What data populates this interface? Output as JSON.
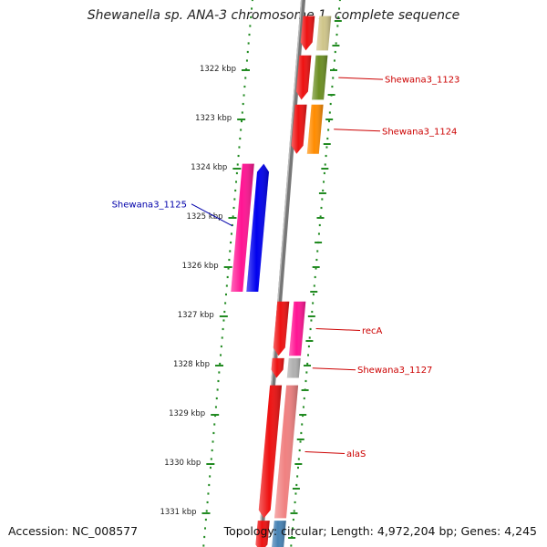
{
  "title": "Shewanella sp. ANA-3 chromosome 1, complete sequence",
  "footer": {
    "accession": "Accession: NC_008577",
    "summary": "Topology: circular; Length: 4,972,204 bp; Genes: 4,245"
  },
  "colors": {
    "tick": "#228B22",
    "backbone": "#777777",
    "label_forward": "#CC0000",
    "label_reverse": "#0000AA"
  },
  "scale": {
    "unit": "kbp",
    "ticks": [
      {
        "kbp": 1322,
        "label": "1322 kbp"
      },
      {
        "kbp": 1323,
        "label": "1323 kbp"
      },
      {
        "kbp": 1324,
        "label": "1324 kbp"
      },
      {
        "kbp": 1325,
        "label": "1325 kbp"
      },
      {
        "kbp": 1326,
        "label": "1326 kbp"
      },
      {
        "kbp": 1327,
        "label": "1327 kbp"
      },
      {
        "kbp": 1328,
        "label": "1328 kbp"
      },
      {
        "kbp": 1329,
        "label": "1329 kbp"
      },
      {
        "kbp": 1330,
        "label": "1330 kbp"
      },
      {
        "kbp": 1331,
        "label": "1331 kbp"
      }
    ]
  },
  "genes": [
    {
      "name": "",
      "strand": "+",
      "start_kbp": 1320.9,
      "end_kbp": 1321.6,
      "cds_color": "#ee1111",
      "feature_color": "#cfc58a"
    },
    {
      "name": "Shewana3_1123",
      "strand": "+",
      "start_kbp": 1321.7,
      "end_kbp": 1322.6,
      "cds_color": "#ee1111",
      "feature_color": "#6b8e23"
    },
    {
      "name": "Shewana3_1124",
      "strand": "+",
      "start_kbp": 1322.7,
      "end_kbp": 1323.7,
      "cds_color": "#ee1111",
      "feature_color": "#ff8c00"
    },
    {
      "name": "Shewana3_1125",
      "strand": "-",
      "start_kbp": 1323.9,
      "end_kbp": 1326.5,
      "cds_color": "#0000ee",
      "feature_color": "#ff1493"
    },
    {
      "name": "recA",
      "strand": "+",
      "start_kbp": 1326.7,
      "end_kbp": 1327.8,
      "cds_color": "#ee1111",
      "feature_color": "#ff1493"
    },
    {
      "name": "Shewana3_1127",
      "strand": "+",
      "start_kbp": 1327.85,
      "end_kbp": 1328.25,
      "cds_color": "#ee1111",
      "feature_color": "#b0b0b0"
    },
    {
      "name": "alaS",
      "strand": "+",
      "start_kbp": 1328.4,
      "end_kbp": 1331.1,
      "cds_color": "#ee1111",
      "feature_color": "#f08080"
    },
    {
      "name": "",
      "strand": "+",
      "start_kbp": 1331.15,
      "end_kbp": 1331.8,
      "cds_color": "#ee1111",
      "feature_color": "#4682b4"
    }
  ]
}
